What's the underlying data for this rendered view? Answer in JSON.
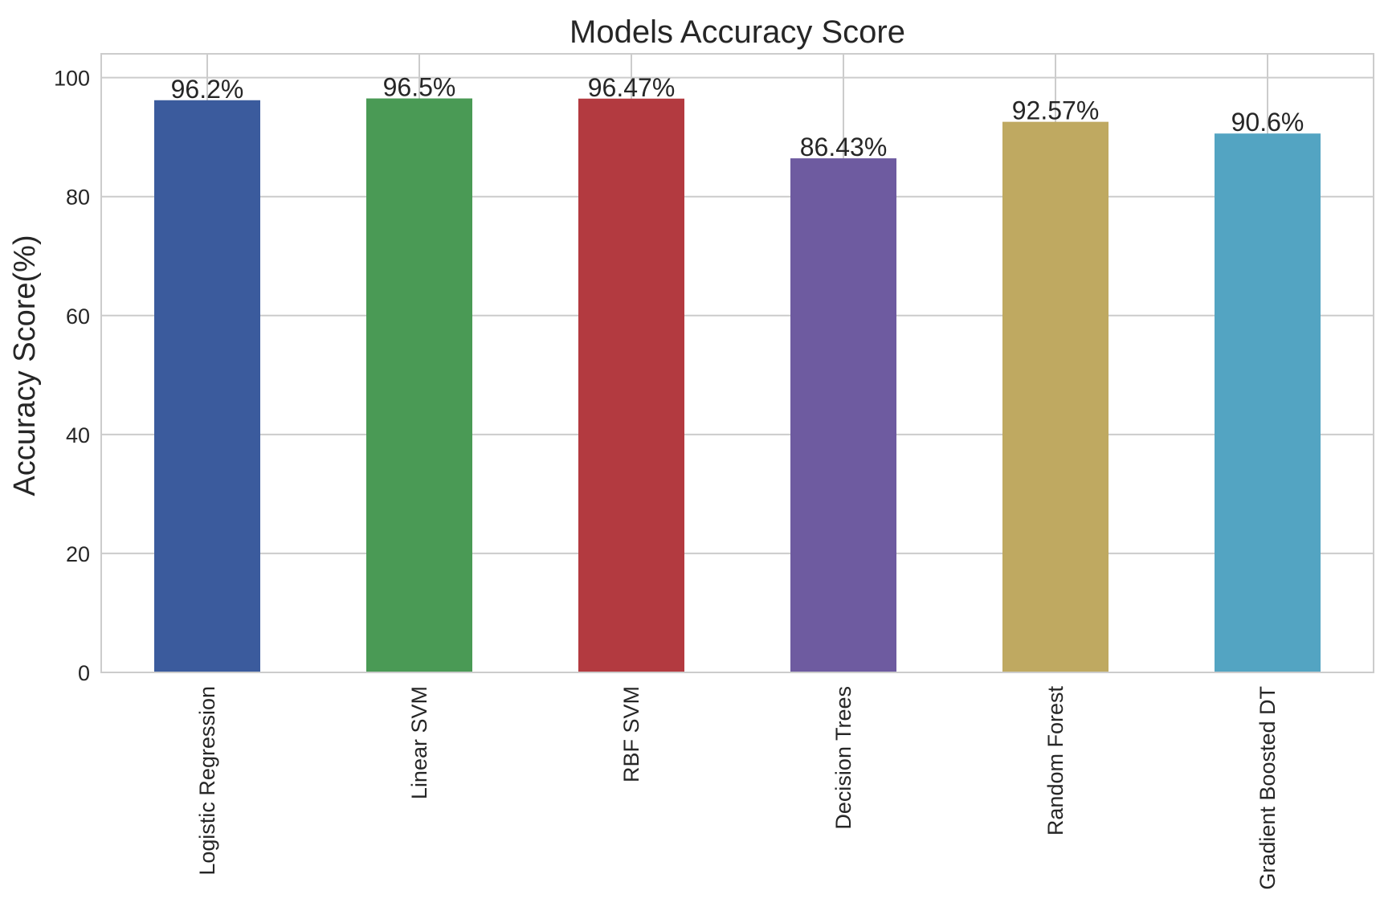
{
  "chart_data": {
    "type": "bar",
    "title": "Models Accuracy Score",
    "xlabel": "",
    "ylabel": "Accuracy Score(%)",
    "ylim": [
      0,
      104
    ],
    "yticks": [
      0,
      20,
      40,
      60,
      80,
      100
    ],
    "grid": true,
    "categories": [
      "Logistic Regression",
      "Linear SVM",
      "RBF SVM",
      "Decision Trees",
      "Random Forest",
      "Gradient Boosted DT"
    ],
    "values": [
      96.2,
      96.5,
      96.47,
      86.43,
      92.57,
      90.6
    ],
    "data_labels": [
      "96.2%",
      "96.5%",
      "96.47%",
      "86.43%",
      "92.57%",
      "90.6%"
    ],
    "colors": [
      "#3b5b9d",
      "#4a9a55",
      "#b33a40",
      "#6e5ba0",
      "#bfa961",
      "#53a4c2"
    ]
  }
}
